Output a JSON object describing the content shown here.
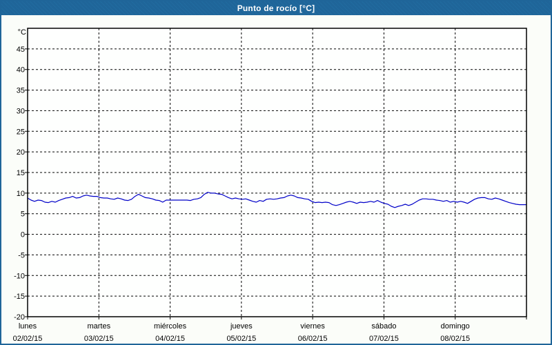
{
  "window": {
    "title": "Punto de rocío [°C]"
  },
  "colors": {
    "frame": "#1f6599",
    "title_text": "#ffffff",
    "page_bg": "#fbfdf9",
    "plot_bg": "#fefffe",
    "line": "#0000c8",
    "grid": "#000000",
    "text": "#000000"
  },
  "chart_data": {
    "type": "line",
    "title": "Punto de rocío [°C]",
    "y_unit_label": "°C",
    "ylim": [
      -20,
      50
    ],
    "y_ticks": [
      45,
      40,
      35,
      30,
      25,
      20,
      15,
      10,
      5,
      0,
      -5,
      -10,
      -15,
      -20
    ],
    "grid": true,
    "legend_position": "none",
    "x_days": [
      {
        "name": "lunes",
        "date": "02/02/15"
      },
      {
        "name": "martes",
        "date": "03/02/15"
      },
      {
        "name": "miércoles",
        "date": "04/02/15"
      },
      {
        "name": "jueves",
        "date": "05/02/15"
      },
      {
        "name": "viernes",
        "date": "06/02/15"
      },
      {
        "name": "sábado",
        "date": "07/02/15"
      },
      {
        "name": "domingo",
        "date": "08/02/15"
      }
    ],
    "x_range_days": [
      0,
      7
    ],
    "series": [
      {
        "name": "Punto de rocío",
        "color": "#0000c8",
        "values": [
          8.8,
          8.3,
          8.0,
          8.3,
          8.2,
          7.8,
          7.7,
          8.0,
          7.8,
          8.2,
          8.5,
          8.8,
          8.9,
          9.2,
          8.8,
          8.9,
          9.3,
          9.5,
          9.3,
          9.2,
          9.2,
          8.9,
          8.8,
          8.8,
          8.6,
          8.5,
          8.8,
          8.6,
          8.3,
          8.2,
          8.5,
          9.2,
          9.7,
          9.3,
          8.9,
          8.8,
          8.6,
          8.3,
          8.2,
          7.8,
          8.3,
          8.3,
          8.3,
          8.3,
          8.3,
          8.3,
          8.3,
          8.2,
          8.5,
          8.6,
          8.9,
          9.7,
          10.2,
          10.0,
          10.0,
          9.8,
          9.7,
          9.3,
          8.9,
          8.6,
          8.8,
          8.6,
          8.5,
          8.6,
          8.3,
          8.0,
          7.8,
          8.2,
          8.0,
          8.5,
          8.6,
          8.5,
          8.6,
          8.8,
          8.9,
          9.3,
          9.5,
          9.3,
          8.9,
          8.8,
          8.6,
          8.5,
          8.0,
          7.7,
          7.8,
          7.7,
          7.8,
          7.7,
          7.2,
          7.0,
          7.2,
          7.5,
          7.8,
          8.0,
          7.8,
          7.5,
          7.8,
          7.7,
          7.8,
          8.0,
          7.8,
          8.2,
          7.8,
          7.5,
          7.3,
          6.8,
          6.5,
          6.8,
          7.0,
          7.3,
          7.0,
          7.3,
          7.8,
          8.3,
          8.6,
          8.6,
          8.5,
          8.5,
          8.3,
          8.2,
          8.0,
          8.2,
          7.8,
          8.0,
          7.8,
          8.0,
          7.8,
          7.5,
          8.0,
          8.5,
          8.8,
          8.9,
          8.9,
          8.6,
          8.5,
          8.8,
          8.6,
          8.3,
          8.0,
          7.7,
          7.5,
          7.3,
          7.2,
          7.2,
          7.2
        ]
      }
    ]
  }
}
